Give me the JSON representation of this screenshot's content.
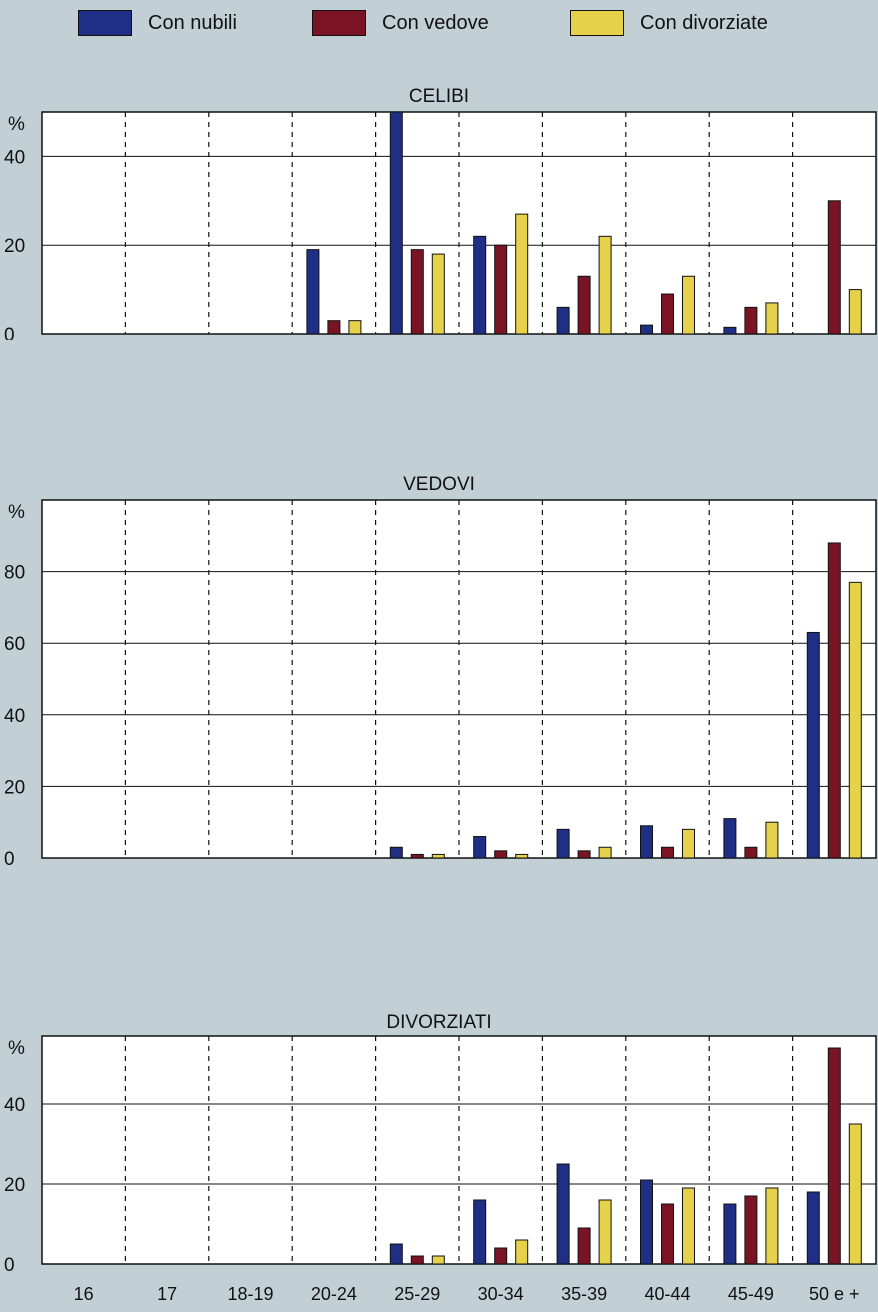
{
  "colors": {
    "nubili": "#1f2f86",
    "vedove": "#7a1424",
    "divorziate": "#e6d24a",
    "panel": "#ffffff"
  },
  "legend": [
    {
      "label": "Con nubili",
      "color": "#1f2f86"
    },
    {
      "label": "Con vedove",
      "color": "#7a1424"
    },
    {
      "label": "Con divorziate",
      "color": "#e6d24a"
    }
  ],
  "chart_data": [
    {
      "type": "bar",
      "title": "CELIBI",
      "ylabel": "%",
      "ylim": [
        0,
        50
      ],
      "yticks": [
        0,
        20,
        40
      ],
      "categories": [
        "16",
        "17",
        "18-19",
        "20-24",
        "25-29",
        "30-34",
        "35-39",
        "40-44",
        "45-49",
        "50 e +"
      ],
      "series": [
        {
          "name": "Con nubili",
          "values": [
            0,
            0,
            0,
            19,
            50,
            22,
            6,
            2,
            1.5,
            0
          ]
        },
        {
          "name": "Con vedove",
          "values": [
            0,
            0,
            0,
            3,
            19,
            20,
            13,
            9,
            6,
            30
          ]
        },
        {
          "name": "Con divorziate",
          "values": [
            0,
            0,
            0,
            3,
            18,
            27,
            22,
            13,
            7,
            10
          ]
        }
      ]
    },
    {
      "type": "bar",
      "title": "VEDOVI",
      "ylabel": "%",
      "ylim": [
        0,
        100
      ],
      "yticks": [
        0,
        20,
        40,
        60,
        80
      ],
      "categories": [
        "16",
        "17",
        "18-19",
        "20-24",
        "25-29",
        "30-34",
        "35-39",
        "40-44",
        "45-49",
        "50 e +"
      ],
      "series": [
        {
          "name": "Con nubili",
          "values": [
            0,
            0,
            0,
            0,
            3,
            6,
            8,
            9,
            11,
            63
          ]
        },
        {
          "name": "Con vedove",
          "values": [
            0,
            0,
            0,
            0,
            1,
            2,
            2,
            3,
            3,
            88
          ]
        },
        {
          "name": "Con divorziate",
          "values": [
            0,
            0,
            0,
            0,
            1,
            1,
            3,
            8,
            10,
            77
          ]
        }
      ]
    },
    {
      "type": "bar",
      "title": "DIVORZIATI",
      "ylabel": "%",
      "ylim": [
        0,
        57
      ],
      "yticks": [
        0,
        20,
        40
      ],
      "categories": [
        "16",
        "17",
        "18-19",
        "20-24",
        "25-29",
        "30-34",
        "35-39",
        "40-44",
        "45-49",
        "50 e +"
      ],
      "series": [
        {
          "name": "Con nubili",
          "values": [
            0,
            0,
            0,
            0,
            5,
            16,
            25,
            21,
            15,
            18
          ]
        },
        {
          "name": "Con vedove",
          "values": [
            0,
            0,
            0,
            0,
            2,
            4,
            9,
            15,
            17,
            54
          ]
        },
        {
          "name": "Con divorziate",
          "values": [
            0,
            0,
            0,
            0,
            2,
            6,
            16,
            19,
            19,
            35
          ]
        }
      ]
    }
  ]
}
